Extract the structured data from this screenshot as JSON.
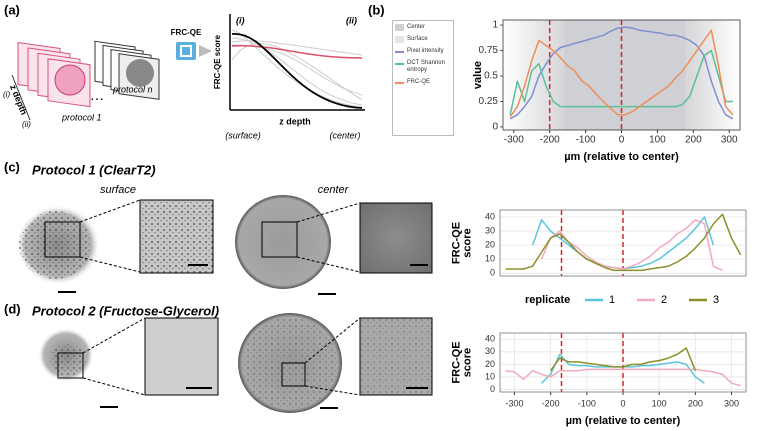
{
  "panel_a": {
    "label": "(a)",
    "stack_axis": "z depth",
    "stack_start": "(i)",
    "stack_end": "(ii)",
    "protocol_first": "protocol 1",
    "protocol_last": "protocol n",
    "method": "FRC-QE",
    "plot_start": "(i)",
    "plot_end": "(ii)",
    "plot_ylabel": "FRC-QE score",
    "plot_xlabel": "z depth",
    "plot_left": "(surface)",
    "plot_right": "(center)"
  },
  "panel_b": {
    "label": "(b)"
  },
  "panel_c": {
    "label": "(c)",
    "title": "Protocol 1 (ClearT2)",
    "left_caption": "surface",
    "right_caption": "center"
  },
  "panel_d": {
    "label": "(d)",
    "title": "Protocol 2 (Fructose-Glycerol)"
  },
  "chart_data": [
    {
      "type": "line",
      "ylabel": [
        "value"
      ],
      "xlabel": "µm (relative to center)",
      "xlim": [
        -330,
        330
      ],
      "ylim": [
        -0.03,
        1.05
      ],
      "xticks": [
        -300,
        -200,
        -100,
        0,
        100,
        200,
        300
      ],
      "yticks": [
        0,
        0.25,
        0.5,
        0.75,
        1
      ],
      "regions": [
        {
          "name": "Center",
          "color": "#cfd0d5",
          "ranges": [
            [
              -160,
              180
            ]
          ]
        },
        {
          "name": "Surface",
          "color": "#e4e4e6",
          "ranges": [
            [
              -330,
              -160
            ],
            [
              180,
              330
            ]
          ]
        }
      ],
      "vlines": [
        -200,
        0
      ],
      "vline_color": "#d62728",
      "x": [
        -310,
        -290,
        -270,
        -250,
        -230,
        -210,
        -190,
        -170,
        -150,
        -130,
        -110,
        -90,
        -70,
        -50,
        -30,
        -10,
        10,
        30,
        50,
        70,
        90,
        110,
        130,
        150,
        170,
        190,
        210,
        230,
        250,
        270,
        290,
        310
      ],
      "series": [
        {
          "name": "Pixel intensity",
          "color": "#7f8fd0",
          "values": [
            0.08,
            0.12,
            0.2,
            0.3,
            0.5,
            0.62,
            0.72,
            0.78,
            0.8,
            0.82,
            0.84,
            0.86,
            0.88,
            0.9,
            0.94,
            0.97,
            0.98,
            0.97,
            0.95,
            0.94,
            0.93,
            0.92,
            0.9,
            0.9,
            0.88,
            0.85,
            0.8,
            0.7,
            0.45,
            0.25,
            0.12,
            0.08
          ]
        },
        {
          "name": "DCT Shannon entropy",
          "color": "#5cbf96",
          "values": [
            0.12,
            0.45,
            0.25,
            0.55,
            0.62,
            0.4,
            0.25,
            0.2,
            0.2,
            0.2,
            0.2,
            0.2,
            0.2,
            0.2,
            0.2,
            0.2,
            0.2,
            0.2,
            0.2,
            0.2,
            0.2,
            0.2,
            0.2,
            0.2,
            0.22,
            0.3,
            0.5,
            0.7,
            0.75,
            0.5,
            0.25,
            0.25
          ]
        },
        {
          "name": "FRC-QE",
          "color": "#f08c58",
          "values": [
            0.1,
            0.2,
            0.4,
            0.65,
            0.85,
            0.8,
            0.75,
            0.68,
            0.6,
            0.55,
            0.45,
            0.4,
            0.32,
            0.25,
            0.18,
            0.12,
            0.12,
            0.15,
            0.2,
            0.25,
            0.3,
            0.35,
            0.4,
            0.48,
            0.55,
            0.65,
            0.75,
            0.85,
            0.95,
            0.6,
            0.2,
            0.12
          ]
        }
      ]
    },
    {
      "type": "line",
      "ylabel": [
        "FRC-QE",
        "score"
      ],
      "legend_title": "replicate",
      "xlim": [
        -340,
        340
      ],
      "ylim": [
        -2,
        45
      ],
      "yticks": [
        0,
        10,
        20,
        30,
        40
      ],
      "grid": true,
      "vlines": [
        -170,
        0
      ],
      "vline_color": "#d62728",
      "x": [
        -325,
        -300,
        -275,
        -250,
        -225,
        -200,
        -175,
        -150,
        -125,
        -100,
        -75,
        -50,
        -25,
        0,
        25,
        50,
        75,
        100,
        125,
        150,
        175,
        200,
        225,
        250,
        275,
        300,
        325
      ],
      "series": [
        {
          "name": "1",
          "color": "#5bc4e0",
          "values": [
            null,
            null,
            null,
            20,
            38,
            30,
            25,
            20,
            15,
            10,
            7,
            5,
            4,
            3,
            4,
            5,
            7,
            10,
            15,
            20,
            25,
            32,
            40,
            20,
            null,
            null,
            null
          ]
        },
        {
          "name": "2",
          "color": "#f2a9bb",
          "values": [
            null,
            null,
            null,
            null,
            10,
            25,
            30,
            22,
            18,
            12,
            8,
            5,
            4,
            3,
            5,
            8,
            12,
            18,
            22,
            28,
            32,
            38,
            35,
            5,
            2,
            null,
            null
          ]
        },
        {
          "name": "3",
          "color": "#8f8f2a",
          "values": [
            3,
            3,
            3,
            5,
            15,
            25,
            28,
            22,
            15,
            10,
            7,
            4,
            2,
            2,
            2,
            2,
            3,
            4,
            5,
            8,
            12,
            18,
            25,
            35,
            42,
            25,
            13
          ]
        }
      ]
    },
    {
      "type": "line",
      "ylabel": [
        "FRC-QE",
        "score"
      ],
      "xlabel": "µm (relative to center)",
      "xlim": [
        -340,
        340
      ],
      "ylim": [
        -2,
        45
      ],
      "xticks": [
        -300,
        -200,
        -100,
        0,
        100,
        200,
        300
      ],
      "yticks": [
        0,
        10,
        20,
        30,
        40
      ],
      "grid": true,
      "vlines": [
        -170,
        0
      ],
      "vline_color": "#d62728",
      "x": [
        -325,
        -300,
        -275,
        -250,
        -225,
        -200,
        -175,
        -150,
        -125,
        -100,
        -75,
        -50,
        -25,
        0,
        25,
        50,
        75,
        100,
        125,
        150,
        175,
        200,
        225,
        250,
        275,
        300,
        325
      ],
      "series": [
        {
          "name": "1",
          "color": "#5bc4e0",
          "values": [
            null,
            null,
            null,
            null,
            5,
            12,
            28,
            20,
            19,
            19,
            18,
            18,
            18,
            18,
            18,
            19,
            19,
            20,
            21,
            22,
            20,
            10,
            5,
            null,
            null,
            null,
            null
          ]
        },
        {
          "name": "2",
          "color": "#f2a9bb",
          "values": [
            15,
            14,
            8,
            15,
            12,
            10,
            15,
            15,
            15,
            16,
            16,
            16,
            16,
            16,
            16,
            16,
            16,
            16,
            16,
            16,
            16,
            16,
            15,
            14,
            12,
            5,
            3
          ]
        },
        {
          "name": "3",
          "color": "#8f8f2a",
          "values": [
            null,
            null,
            null,
            null,
            null,
            15,
            25,
            22,
            22,
            21,
            20,
            19,
            18,
            18,
            20,
            20,
            22,
            23,
            25,
            28,
            33,
            15,
            null,
            null,
            null,
            null,
            null
          ]
        }
      ]
    }
  ]
}
